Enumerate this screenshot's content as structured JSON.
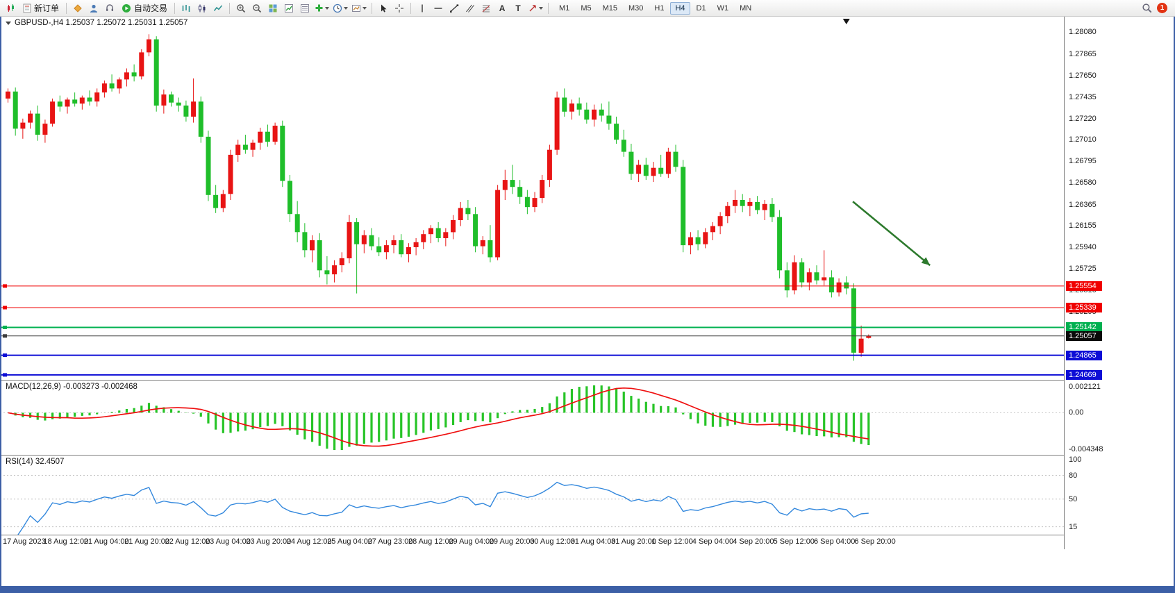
{
  "toolbar": {
    "new_order": "新订单",
    "auto_trading": "自动交易",
    "glyph_text": "A",
    "glyph_label": "T",
    "timeframes": [
      "M1",
      "M5",
      "M15",
      "M30",
      "H1",
      "H4",
      "D1",
      "W1",
      "MN"
    ],
    "active_timeframe": "H4",
    "badge": "1"
  },
  "chart_header": {
    "symbol_label": "GBPUSD-,H4 1.25037 1.25072 1.25031 1.25057"
  },
  "indicator_labels": {
    "macd": "MACD(12,26,9) -0.003273 -0.002468",
    "rsi": "RSI(14) 32.4507"
  },
  "chart_data": {
    "type": "candlestick",
    "symbol": "GBPUSD-",
    "timeframe": "H4",
    "current_ohlc": {
      "open": 1.25037,
      "high": 1.25072,
      "low": 1.25031,
      "close": 1.25057
    },
    "y_ticks": [
      "1.28080",
      "1.27865",
      "1.27650",
      "1.27435",
      "1.27220",
      "1.27010",
      "1.26795",
      "1.26580",
      "1.26365",
      "1.26155",
      "1.25940",
      "1.25725",
      "1.25510",
      "1.25295"
    ],
    "time_labels": [
      "17 Aug 2023",
      "18 Aug 12:00",
      "21 Aug 04:00",
      "21 Aug 20:00",
      "22 Aug 12:00",
      "23 Aug 04:00",
      "23 Aug 20:00",
      "24 Aug 12:00",
      "25 Aug 04:00",
      "27 Aug 23:00",
      "28 Aug 12:00",
      "29 Aug 04:00",
      "29 Aug 20:00",
      "30 Aug 12:00",
      "31 Aug 04:00",
      "31 Aug 20:00",
      "1 Sep 12:00",
      "4 Sep 04:00",
      "4 Sep 20:00",
      "5 Sep 12:00",
      "6 Sep 04:00",
      "6 Sep 20:00"
    ],
    "levels": [
      {
        "price": 1.25554,
        "label": "1.25554",
        "color": "#f00000",
        "style": "solid",
        "width": 1
      },
      {
        "price": 1.25339,
        "label": "1.25339",
        "color": "#f00000",
        "style": "solid",
        "width": 1
      },
      {
        "price": 1.25142,
        "label": "1.25142",
        "color": "#00b050",
        "style": "solid",
        "width": 2
      },
      {
        "price": 1.25057,
        "label": "1.25057",
        "color": "#3c3c3c",
        "style": "solid",
        "width": 1,
        "current": true,
        "tag_color": "#0a0a0a"
      },
      {
        "price": 1.24865,
        "label": "1.24865",
        "color": "#0d0dd6",
        "style": "solid",
        "width": 2
      },
      {
        "price": 1.24669,
        "label": "1.24669",
        "color": "#0d0dd6",
        "style": "solid",
        "width": 2
      }
    ],
    "colors": {
      "bull": "#e81414",
      "bear": "#1fbe2a",
      "macd_hist": "#27c427",
      "macd_signal": "#ef1010",
      "rsi_line": "#3388dd"
    },
    "macd": {
      "params": [
        12,
        26,
        9
      ],
      "current_main": -0.003273,
      "current_signal": -0.002468,
      "scale": [
        "0.002121",
        "0.00",
        "-0.004348"
      ]
    },
    "rsi": {
      "period": 14,
      "current": 32.4507,
      "scale": [
        "100",
        "80",
        "50",
        "15"
      ],
      "levels": [
        80,
        50,
        15
      ]
    },
    "annotation_arrow": {
      "from_bar": 114.2,
      "from_price": 1.26395,
      "to_bar": 124.6,
      "to_price": 1.2576,
      "color": "#2d7a2d"
    },
    "candles": [
      [
        1.2742,
        1.2752,
        1.2738,
        1.2749
      ],
      [
        1.2749,
        1.2753,
        1.2705,
        1.2712
      ],
      [
        1.2712,
        1.2722,
        1.2702,
        1.2718
      ],
      [
        1.2718,
        1.273,
        1.2712,
        1.2727
      ],
      [
        1.2727,
        1.2735,
        1.27,
        1.2706
      ],
      [
        1.2706,
        1.2721,
        1.2698,
        1.2717
      ],
      [
        1.2717,
        1.2742,
        1.2714,
        1.2739
      ],
      [
        1.2739,
        1.2745,
        1.2729,
        1.2734
      ],
      [
        1.2734,
        1.2743,
        1.2727,
        1.2741
      ],
      [
        1.2741,
        1.2748,
        1.2734,
        1.2737
      ],
      [
        1.2737,
        1.2745,
        1.2731,
        1.2743
      ],
      [
        1.2743,
        1.275,
        1.2735,
        1.2739
      ],
      [
        1.2739,
        1.2752,
        1.2734,
        1.2748
      ],
      [
        1.2748,
        1.276,
        1.2743,
        1.2757
      ],
      [
        1.2757,
        1.2766,
        1.2749,
        1.2752
      ],
      [
        1.2752,
        1.2763,
        1.2747,
        1.2761
      ],
      [
        1.2761,
        1.2772,
        1.2754,
        1.2768
      ],
      [
        1.2768,
        1.2776,
        1.2759,
        1.2764
      ],
      [
        1.2764,
        1.2791,
        1.2761,
        1.2788
      ],
      [
        1.2788,
        1.2806,
        1.2784,
        1.2801
      ],
      [
        1.2801,
        1.2804,
        1.2729,
        1.2735
      ],
      [
        1.2735,
        1.2751,
        1.2727,
        1.2746
      ],
      [
        1.2746,
        1.2749,
        1.2734,
        1.2738
      ],
      [
        1.2738,
        1.2743,
        1.2729,
        1.2735
      ],
      [
        1.2735,
        1.274,
        1.2719,
        1.2724
      ],
      [
        1.2724,
        1.2762,
        1.2718,
        1.2739
      ],
      [
        1.2739,
        1.2744,
        1.2698,
        1.2704
      ],
      [
        1.2704,
        1.271,
        1.264,
        1.2646
      ],
      [
        1.2646,
        1.2656,
        1.2628,
        1.2633
      ],
      [
        1.2633,
        1.2651,
        1.2629,
        1.2647
      ],
      [
        1.2647,
        1.2691,
        1.2641,
        1.2686
      ],
      [
        1.2686,
        1.2701,
        1.2679,
        1.2696
      ],
      [
        1.2696,
        1.2706,
        1.2687,
        1.2691
      ],
      [
        1.2691,
        1.2701,
        1.2684,
        1.2698
      ],
      [
        1.2698,
        1.2713,
        1.2691,
        1.2709
      ],
      [
        1.2709,
        1.2716,
        1.2694,
        1.2699
      ],
      [
        1.2699,
        1.2718,
        1.2696,
        1.2715
      ],
      [
        1.2715,
        1.272,
        1.2654,
        1.266
      ],
      [
        1.266,
        1.2666,
        1.2619,
        1.2627
      ],
      [
        1.2627,
        1.264,
        1.2599,
        1.2609
      ],
      [
        1.2609,
        1.2618,
        1.2584,
        1.2591
      ],
      [
        1.2591,
        1.2606,
        1.2579,
        1.2601
      ],
      [
        1.2601,
        1.2608,
        1.2564,
        1.2571
      ],
      [
        1.2571,
        1.2585,
        1.2557,
        1.2567
      ],
      [
        1.2567,
        1.2581,
        1.2559,
        1.2576
      ],
      [
        1.2576,
        1.2589,
        1.2569,
        1.2583
      ],
      [
        1.2583,
        1.2626,
        1.2578,
        1.2619
      ],
      [
        1.2619,
        1.2623,
        1.2548,
        1.2597
      ],
      [
        1.2597,
        1.2611,
        1.2588,
        1.2606
      ],
      [
        1.2606,
        1.2613,
        1.2591,
        1.2595
      ],
      [
        1.2595,
        1.2604,
        1.2585,
        1.2589
      ],
      [
        1.2589,
        1.2601,
        1.2582,
        1.2596
      ],
      [
        1.2596,
        1.2606,
        1.2588,
        1.2601
      ],
      [
        1.2601,
        1.2607,
        1.2584,
        1.2587
      ],
      [
        1.2587,
        1.2598,
        1.2579,
        1.2594
      ],
      [
        1.2594,
        1.2603,
        1.2586,
        1.2599
      ],
      [
        1.2599,
        1.2611,
        1.2592,
        1.2607
      ],
      [
        1.2607,
        1.2616,
        1.2598,
        1.2613
      ],
      [
        1.2613,
        1.2619,
        1.2599,
        1.2603
      ],
      [
        1.2603,
        1.2613,
        1.2595,
        1.2609
      ],
      [
        1.2609,
        1.2626,
        1.2602,
        1.2621
      ],
      [
        1.2621,
        1.2639,
        1.2615,
        1.2633
      ],
      [
        1.2633,
        1.2641,
        1.2621,
        1.2627
      ],
      [
        1.2627,
        1.2634,
        1.2589,
        1.2595
      ],
      [
        1.2595,
        1.2605,
        1.2587,
        1.2601
      ],
      [
        1.2601,
        1.2616,
        1.2579,
        1.2584
      ],
      [
        1.2584,
        1.2656,
        1.2581,
        1.2651
      ],
      [
        1.2651,
        1.2671,
        1.2641,
        1.2661
      ],
      [
        1.2661,
        1.2676,
        1.2647,
        1.2654
      ],
      [
        1.2654,
        1.2661,
        1.2637,
        1.2644
      ],
      [
        1.2644,
        1.2651,
        1.2627,
        1.2634
      ],
      [
        1.2634,
        1.2649,
        1.2629,
        1.2643
      ],
      [
        1.2643,
        1.2666,
        1.2638,
        1.2661
      ],
      [
        1.2661,
        1.2696,
        1.2654,
        1.2691
      ],
      [
        1.2691,
        1.2749,
        1.2686,
        1.2743
      ],
      [
        1.2743,
        1.2752,
        1.2724,
        1.2729
      ],
      [
        1.2729,
        1.2741,
        1.2721,
        1.2737
      ],
      [
        1.2737,
        1.2743,
        1.2725,
        1.2731
      ],
      [
        1.2731,
        1.2738,
        1.2717,
        1.2721
      ],
      [
        1.2721,
        1.2736,
        1.2714,
        1.2731
      ],
      [
        1.2731,
        1.2737,
        1.2719,
        1.2725
      ],
      [
        1.2725,
        1.2739,
        1.2711,
        1.2717
      ],
      [
        1.2717,
        1.2724,
        1.2697,
        1.2701
      ],
      [
        1.2701,
        1.2711,
        1.2684,
        1.2689
      ],
      [
        1.2689,
        1.2697,
        1.2661,
        1.2667
      ],
      [
        1.2667,
        1.2681,
        1.2659,
        1.2676
      ],
      [
        1.2676,
        1.2683,
        1.2661,
        1.2665
      ],
      [
        1.2665,
        1.2679,
        1.2659,
        1.2673
      ],
      [
        1.2673,
        1.2686,
        1.2664,
        1.2667
      ],
      [
        1.2667,
        1.2693,
        1.2663,
        1.2689
      ],
      [
        1.2689,
        1.2696,
        1.2669,
        1.2674
      ],
      [
        1.2674,
        1.2681,
        1.2589,
        1.2596
      ],
      [
        1.2596,
        1.2609,
        1.2587,
        1.2604
      ],
      [
        1.2604,
        1.2611,
        1.2591,
        1.2597
      ],
      [
        1.2597,
        1.2613,
        1.2593,
        1.2609
      ],
      [
        1.2609,
        1.2619,
        1.2601,
        1.2615
      ],
      [
        1.2615,
        1.2629,
        1.2607,
        1.2625
      ],
      [
        1.2625,
        1.2639,
        1.2618,
        1.2635
      ],
      [
        1.2635,
        1.2651,
        1.2628,
        1.2641
      ],
      [
        1.2641,
        1.2647,
        1.2629,
        1.2635
      ],
      [
        1.2635,
        1.2643,
        1.2625,
        1.2639
      ],
      [
        1.2639,
        1.2645,
        1.2627,
        1.2631
      ],
      [
        1.2631,
        1.2641,
        1.2621,
        1.2637
      ],
      [
        1.2637,
        1.2643,
        1.2619,
        1.2624
      ],
      [
        1.2624,
        1.2631,
        1.2563,
        1.2571
      ],
      [
        1.2571,
        1.2579,
        1.2544,
        1.2551
      ],
      [
        1.2551,
        1.2586,
        1.2547,
        1.2579
      ],
      [
        1.2579,
        1.2583,
        1.2554,
        1.2559
      ],
      [
        1.2559,
        1.2573,
        1.2551,
        1.2569
      ],
      [
        1.2569,
        1.2576,
        1.2557,
        1.2561
      ],
      [
        1.2561,
        1.2591,
        1.2556,
        1.2564
      ],
      [
        1.2564,
        1.2571,
        1.2544,
        1.2549
      ],
      [
        1.2549,
        1.2563,
        1.2545,
        1.2559
      ],
      [
        1.2559,
        1.2565,
        1.2547,
        1.2553
      ],
      [
        1.2553,
        1.2558,
        1.2481,
        1.2489
      ],
      [
        1.2489,
        1.2516,
        1.2485,
        1.2503
      ],
      [
        1.25037,
        1.25072,
        1.25031,
        1.25057
      ]
    ]
  }
}
